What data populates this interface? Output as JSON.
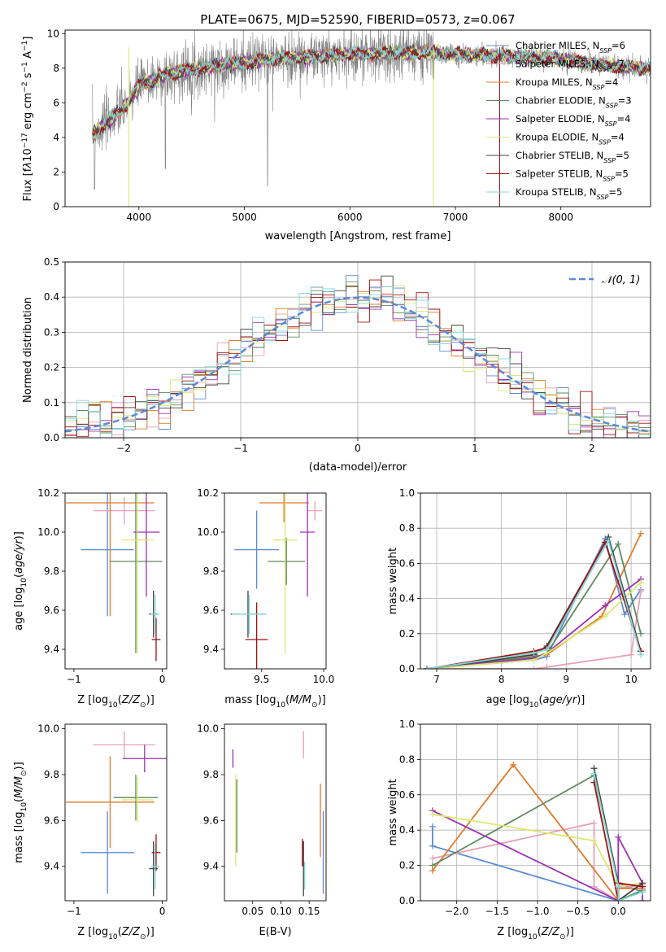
{
  "figure": {
    "title": "PLATE=0675, MJD=52590, FIBERID=0573, z=0.067"
  },
  "chart_data": [
    {
      "id": "spectrum",
      "type": "line",
      "title": "PLATE=0675, MJD=52590, FIBERID=0573, z=0.067",
      "xlabel": "wavelength [Angstrom, rest frame]",
      "ylabel": "Flux [f_λ10^-17 erg cm^-2 s^-1 A^-1]",
      "xlim": [
        3300,
        8850
      ],
      "ylim": [
        0,
        10.2
      ],
      "xticks": [
        4000,
        5000,
        6000,
        7000,
        8000
      ],
      "yticks": [
        0,
        2,
        4,
        6,
        8,
        10
      ],
      "grid": false,
      "legend_position": "right",
      "data_color": "#808080",
      "continuum": {
        "x": [
          3550,
          3600,
          3700,
          3800,
          3900,
          4000,
          4200,
          4400,
          4600,
          4800,
          5000,
          5200,
          5500,
          6000,
          6500,
          7000,
          7500,
          8000,
          8500,
          8850
        ],
        "y": [
          4.1,
          4.4,
          4.9,
          5.4,
          6.0,
          7.0,
          7.5,
          7.8,
          8.0,
          8.2,
          8.3,
          8.5,
          8.6,
          8.8,
          8.9,
          8.8,
          8.7,
          8.5,
          8.1,
          8.0
        ]
      },
      "series": [
        {
          "name": "Chabrier MILES, N_SSP=6",
          "color": "#5b8ad6"
        },
        {
          "name": "Salpeter MILES, N_SSP=7",
          "color": "#e8a0b8"
        },
        {
          "name": "Kroupa MILES, N_SSP=4",
          "color": "#e07b2a"
        },
        {
          "name": "Chabrier ELODIE, N_SSP=3",
          "color": "#5e8a5e"
        },
        {
          "name": "Salpeter ELODIE, N_SSP=4",
          "color": "#9b30b0"
        },
        {
          "name": "Kroupa ELODIE, N_SSP=4",
          "color": "#dbe870"
        },
        {
          "name": "Chabrier STELIB, N_SSP=5",
          "color": "#404040"
        },
        {
          "name": "Salpeter STELIB, N_SSP=5",
          "color": "#a01010"
        },
        {
          "name": "Kroupa STELIB, N_SSP=5",
          "color": "#7fd8d8"
        }
      ]
    },
    {
      "id": "residuals",
      "type": "line",
      "xlabel": "(data-model)/error",
      "ylabel": "Normed distribution",
      "xlim": [
        -2.5,
        2.5
      ],
      "ylim": [
        0,
        0.5
      ],
      "xticks": [
        -2,
        -1,
        0,
        1,
        2
      ],
      "yticks": [
        0.0,
        0.1,
        0.2,
        0.3,
        0.4,
        0.5
      ],
      "grid": true,
      "legend": "𝒩(0, 1)",
      "legend_position": "top-right",
      "gaussian_color": "#5b8ad6",
      "bin_edges_start": -2.5,
      "bin_width": 0.1
    },
    {
      "id": "age-vs-Z",
      "type": "scatter",
      "xlabel": "Z [log10(Z/Z☉)]",
      "ylabel": "age [log10(age/yr)]",
      "xlim": [
        -1.1,
        0.05
      ],
      "ylim": [
        9.3,
        10.2
      ],
      "xticks": [
        -1,
        0
      ],
      "yticks": [
        9.4,
        9.6,
        9.8,
        10.0,
        10.2
      ],
      "points": [
        {
          "x": -0.62,
          "xerr": 0.3,
          "y": 9.91,
          "yerr": 0.34,
          "color": "#5b8ad6"
        },
        {
          "x": -0.43,
          "xerr": 0.35,
          "y": 10.11,
          "yerr": 0.07,
          "color": "#e8a0b8"
        },
        {
          "x": -0.59,
          "xerr": 0.5,
          "y": 10.15,
          "yerr": 0.58,
          "color": "#e07b2a"
        },
        {
          "x": -0.3,
          "xerr": 0.3,
          "y": 9.85,
          "yerr": 0.47,
          "color": "#5e8a5e"
        },
        {
          "x": -0.18,
          "xerr": 0.15,
          "y": 10.0,
          "yerr": 0.33,
          "color": "#9b30b0"
        },
        {
          "x": -0.28,
          "xerr": 0.18,
          "y": 9.96,
          "yerr": 0.58,
          "color": "#dbe870"
        },
        {
          "x": -0.1,
          "xerr": 0.05,
          "y": 9.58,
          "yerr": 0.12,
          "color": "#404040"
        },
        {
          "x": -0.07,
          "xerr": 0.05,
          "y": 9.45,
          "yerr": 0.11,
          "color": "#a01010"
        },
        {
          "x": -0.08,
          "xerr": 0.05,
          "y": 9.58,
          "yerr": 0.1,
          "color": "#7fd8d8"
        }
      ]
    },
    {
      "id": "age-vs-mass",
      "type": "scatter",
      "xlabel": "mass [log10(M/M☉)]",
      "ylabel": "",
      "xlim": [
        9.2,
        10.02
      ],
      "ylim": [
        9.3,
        10.2
      ],
      "xticks": [
        9.5,
        10.0
      ],
      "yticks": [
        9.4,
        9.6,
        9.8,
        10.0,
        10.2
      ],
      "points": [
        {
          "x": 9.46,
          "xerr": 0.18,
          "y": 9.91,
          "yerr": 0.2,
          "color": "#5b8ad6"
        },
        {
          "x": 9.93,
          "xerr": 0.06,
          "y": 10.11,
          "yerr": 0.05,
          "color": "#e8a0b8"
        },
        {
          "x": 9.68,
          "xerr": 0.2,
          "y": 10.15,
          "yerr": 0.1,
          "color": "#e07b2a"
        },
        {
          "x": 9.7,
          "xerr": 0.15,
          "y": 9.85,
          "yerr": 0.12,
          "color": "#5e8a5e"
        },
        {
          "x": 9.87,
          "xerr": 0.06,
          "y": 10.0,
          "yerr": 0.33,
          "color": "#9b30b0"
        },
        {
          "x": 9.69,
          "xerr": 0.1,
          "y": 9.96,
          "yerr": 0.58,
          "color": "#dbe870"
        },
        {
          "x": 9.39,
          "xerr": 0.14,
          "y": 9.58,
          "yerr": 0.12,
          "color": "#404040"
        },
        {
          "x": 9.46,
          "xerr": 0.09,
          "y": 9.45,
          "yerr": 0.19,
          "color": "#a01010"
        },
        {
          "x": 9.4,
          "xerr": 0.14,
          "y": 9.58,
          "yerr": 0.1,
          "color": "#7fd8d8"
        }
      ]
    },
    {
      "id": "massweight-vs-age",
      "type": "line",
      "xlabel": "age [log10(age/yr)]",
      "ylabel": "mass weight",
      "xlim": [
        6.75,
        10.3
      ],
      "ylim": [
        0,
        1.0
      ],
      "xticks": [
        7,
        8,
        9,
        10
      ],
      "yticks": [
        0.0,
        0.2,
        0.4,
        0.6,
        0.8,
        1.0
      ],
      "grid": true,
      "series": [
        {
          "color": "#5b8ad6",
          "x": [
            6.85,
            8.5,
            8.7,
            9.6,
            9.9,
            10.15
          ],
          "y": [
            0.0,
            0.05,
            0.07,
            0.74,
            0.31,
            0.45
          ]
        },
        {
          "color": "#e8a0b8",
          "x": [
            6.85,
            8.5,
            8.7,
            10.0,
            10.15
          ],
          "y": [
            0.0,
            0.0,
            0.01,
            0.08,
            0.44
          ]
        },
        {
          "color": "#e07b2a",
          "x": [
            6.85,
            8.5,
            8.7,
            9.55,
            10.15
          ],
          "y": [
            0.0,
            0.07,
            0.08,
            0.3,
            0.77
          ]
        },
        {
          "color": "#5e8a5e",
          "x": [
            6.85,
            8.55,
            8.7,
            9.8,
            10.15
          ],
          "y": [
            0.0,
            0.07,
            0.09,
            0.71,
            0.2
          ]
        },
        {
          "color": "#9b30b0",
          "x": [
            6.85,
            8.5,
            8.7,
            9.6,
            10.15
          ],
          "y": [
            0.0,
            0.06,
            0.09,
            0.36,
            0.51
          ]
        },
        {
          "color": "#dbe870",
          "x": [
            6.85,
            8.5,
            8.7,
            9.6,
            10.15
          ],
          "y": [
            0.0,
            0.05,
            0.09,
            0.3,
            0.49
          ]
        },
        {
          "color": "#404040",
          "x": [
            6.85,
            8.5,
            8.7,
            9.65,
            10.15
          ],
          "y": [
            0.0,
            0.08,
            0.13,
            0.75,
            0.1
          ]
        },
        {
          "color": "#a01010",
          "x": [
            6.85,
            8.5,
            8.7,
            9.6,
            10.15
          ],
          "y": [
            0.0,
            0.1,
            0.12,
            0.72,
            0.1
          ]
        },
        {
          "color": "#7fd8d8",
          "x": [
            6.85,
            8.5,
            8.7,
            9.65,
            10.15
          ],
          "y": [
            0.0,
            0.09,
            0.11,
            0.73,
            0.08
          ]
        }
      ]
    },
    {
      "id": "mass-vs-Z",
      "type": "scatter",
      "xlabel": "Z [log10(Z/Z☉)]",
      "ylabel": "mass [log10(M/M☉)]",
      "xlim": [
        -1.1,
        0.05
      ],
      "ylim": [
        9.25,
        10.02
      ],
      "xticks": [
        -1,
        0
      ],
      "yticks": [
        9.4,
        9.6,
        9.8,
        10.0
      ],
      "points": [
        {
          "x": -0.62,
          "xerr": 0.3,
          "y": 9.46,
          "yerr": 0.18,
          "color": "#5b8ad6"
        },
        {
          "x": -0.43,
          "xerr": 0.35,
          "y": 9.93,
          "yerr": 0.06,
          "color": "#e8a0b8"
        },
        {
          "x": -0.59,
          "xerr": 0.5,
          "y": 9.68,
          "yerr": 0.2,
          "color": "#e07b2a"
        },
        {
          "x": -0.3,
          "xerr": 0.25,
          "y": 9.7,
          "yerr": 0.1,
          "color": "#5e8a5e"
        },
        {
          "x": -0.2,
          "xerr": 0.25,
          "y": 9.87,
          "yerr": 0.06,
          "color": "#9b30b0"
        },
        {
          "x": -0.28,
          "xerr": 0.18,
          "y": 9.69,
          "yerr": 0.1,
          "color": "#dbe870"
        },
        {
          "x": -0.1,
          "xerr": 0.05,
          "y": 9.39,
          "yerr": 0.12,
          "color": "#404040"
        },
        {
          "x": -0.07,
          "xerr": 0.05,
          "y": 9.46,
          "yerr": 0.08,
          "color": "#a01010"
        },
        {
          "x": -0.08,
          "xerr": 0.05,
          "y": 9.4,
          "yerr": 0.1,
          "color": "#7fd8d8"
        }
      ]
    },
    {
      "id": "mass-vs-ebv",
      "type": "scatter",
      "xlabel": "E(B-V)",
      "ylabel": "",
      "xlim": [
        0.0,
        0.18
      ],
      "ylim": [
        9.25,
        10.02
      ],
      "xticks": [
        0.05,
        0.1,
        0.15
      ],
      "yticks": [
        9.4,
        9.6,
        9.8,
        10.0
      ],
      "points": [
        {
          "x": 0.175,
          "y": 9.46,
          "yerr": 0.18,
          "color": "#5b8ad6"
        },
        {
          "x": 0.14,
          "y": 9.93,
          "yerr": 0.06,
          "color": "#e8a0b8"
        },
        {
          "x": 0.17,
          "y": 9.6,
          "yerr": 0.16,
          "color": "#e07b2a"
        },
        {
          "x": 0.022,
          "y": 9.62,
          "yerr": 0.16,
          "color": "#5e8a5e"
        },
        {
          "x": 0.015,
          "y": 9.87,
          "yerr": 0.04,
          "color": "#9b30b0"
        },
        {
          "x": 0.02,
          "y": 9.6,
          "yerr": 0.2,
          "color": "#dbe870"
        },
        {
          "x": 0.14,
          "y": 9.39,
          "yerr": 0.12,
          "color": "#404040"
        },
        {
          "x": 0.138,
          "y": 9.46,
          "yerr": 0.06,
          "color": "#a01010"
        },
        {
          "x": 0.142,
          "y": 9.36,
          "yerr": 0.06,
          "color": "#7fd8d8"
        }
      ]
    },
    {
      "id": "massweight-vs-Z",
      "type": "line",
      "xlabel": "Z [log10(Z/Z☉)]",
      "ylabel": "mass weight",
      "xlim": [
        -2.45,
        0.4
      ],
      "ylim": [
        0,
        1.0
      ],
      "xticks": [
        -2.0,
        -1.5,
        -1.0,
        -0.5,
        0.0
      ],
      "yticks": [
        0.0,
        0.2,
        0.4,
        0.6,
        0.8,
        1.0
      ],
      "grid": true,
      "series": [
        {
          "color": "#5b8ad6",
          "x": [
            -2.3,
            -2.3,
            0.0,
            0.0,
            0.3
          ],
          "y": [
            0.42,
            0.31,
            0.0,
            0.1,
            0.05
          ]
        },
        {
          "color": "#e8a0b8",
          "x": [
            -2.3,
            -0.3,
            -0.3,
            0.0,
            0.0,
            0.3
          ],
          "y": [
            0.24,
            0.44,
            0.08,
            0.0,
            0.07,
            0.09
          ]
        },
        {
          "color": "#e07b2a",
          "x": [
            -2.3,
            -1.3,
            0.0,
            0.0,
            0.3
          ],
          "y": [
            0.17,
            0.77,
            0.0,
            0.07,
            0.07
          ]
        },
        {
          "color": "#5e8a5e",
          "x": [
            -2.3,
            -0.3,
            0.0,
            0.0,
            0.3
          ],
          "y": [
            0.2,
            0.71,
            0.1,
            0.0,
            0.06
          ]
        },
        {
          "color": "#9b30b0",
          "x": [
            -2.3,
            0.0,
            0.0,
            0.3,
            0.3
          ],
          "y": [
            0.51,
            0.0,
            0.36,
            0.1,
            0.0
          ]
        },
        {
          "color": "#dbe870",
          "x": [
            -2.3,
            -0.3,
            0.0,
            0.3
          ],
          "y": [
            0.49,
            0.34,
            0.08,
            0.1
          ]
        },
        {
          "color": "#404040",
          "x": [
            -0.3,
            0.0,
            0.0,
            0.3
          ],
          "y": [
            0.75,
            0.1,
            0.0,
            0.1
          ]
        },
        {
          "color": "#a01010",
          "x": [
            -0.3,
            0.0,
            0.0,
            0.3
          ],
          "y": [
            0.67,
            0.0,
            0.1,
            0.08
          ]
        },
        {
          "color": "#7fd8d8",
          "x": [
            -0.3,
            0.0,
            0.0,
            0.3
          ],
          "y": [
            0.72,
            0.08,
            0.0,
            0.05
          ]
        }
      ]
    }
  ]
}
